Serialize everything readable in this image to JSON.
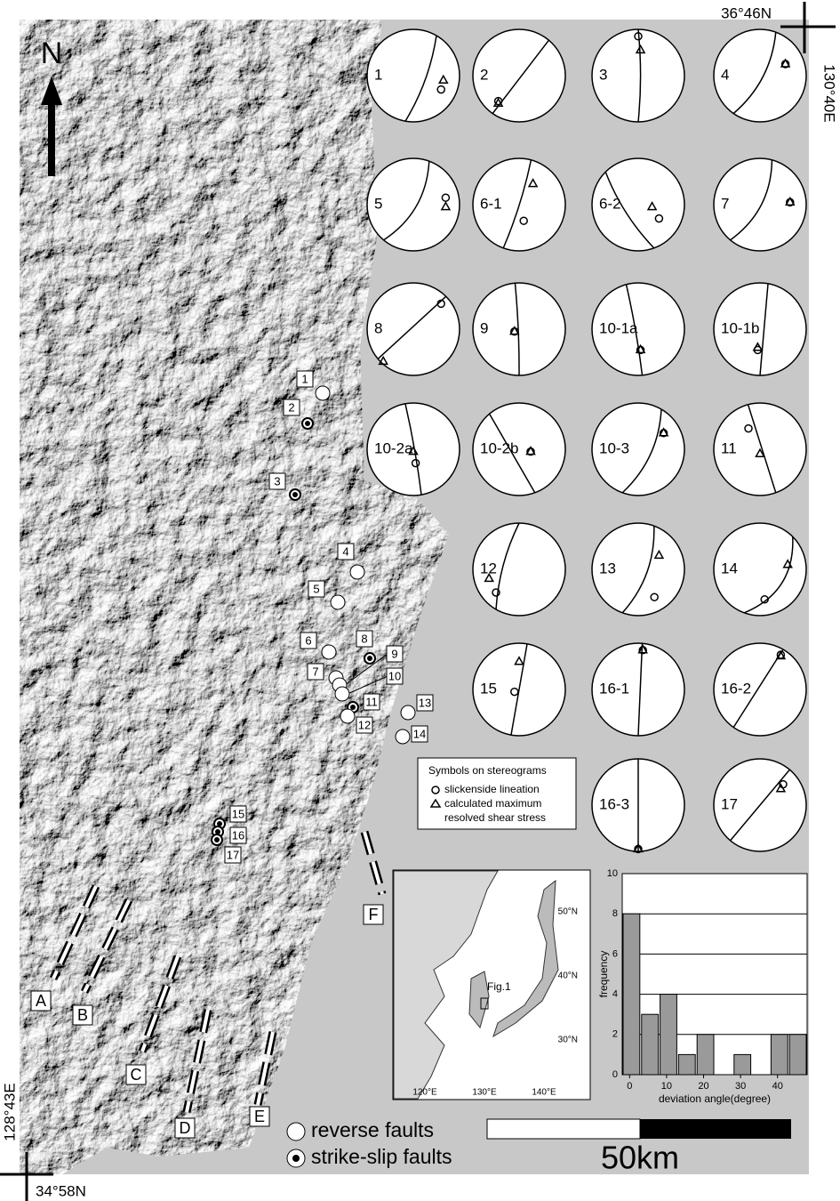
{
  "coords": {
    "top_right_lat": "36°46N",
    "top_right_lon": "130°40E",
    "bottom_left_lon": "128°43E",
    "bottom_left_lat": "34°58N"
  },
  "north": "N",
  "stereograms": [
    "1",
    "2",
    "3",
    "4",
    "5",
    "6-1",
    "6-2",
    "7",
    "8",
    "9",
    "10-1a",
    "10-1b",
    "10-2a",
    "10-2b",
    "10-3",
    "11",
    "12",
    "13",
    "14",
    "15",
    "16-1",
    "16-2",
    "16-3",
    "17"
  ],
  "sites": [
    "1",
    "2",
    "3",
    "4",
    "5",
    "6",
    "7",
    "8",
    "9",
    "10",
    "11",
    "12",
    "13",
    "14",
    "15",
    "16",
    "17"
  ],
  "faults": [
    "A",
    "B",
    "C",
    "D",
    "E",
    "F"
  ],
  "stereo_legend": {
    "title": "Symbols on stereograms",
    "circle": "slickenside lineation",
    "triangle_line1": "calculated maximum",
    "triangle_line2": "resolved shear stress"
  },
  "legend": {
    "reverse": "reverse faults",
    "strike_slip": "strike-slip faults"
  },
  "scale": "50km",
  "inset": {
    "lat_labels": [
      "50°N",
      "40°N",
      "30°N"
    ],
    "lon_labels": [
      "120°E",
      "130°E",
      "140°E"
    ],
    "box_label": "Fig.1"
  },
  "chart_data": {
    "type": "histogram",
    "x_label": "deviation angle(degree)",
    "y_label": "frequency",
    "bins": [
      -2,
      3,
      8,
      13,
      18,
      23,
      28,
      33,
      38,
      43,
      48
    ],
    "values": [
      8,
      3,
      4,
      1,
      2,
      0,
      1,
      0,
      2,
      2
    ],
    "color": "#9a9a9a",
    "xlim": [
      -2,
      48
    ],
    "ylim": [
      0,
      10
    ],
    "xticks": [
      0,
      10,
      20,
      30,
      40
    ],
    "yticks": [
      0,
      2,
      4,
      6,
      8,
      10
    ],
    "grid": true
  }
}
